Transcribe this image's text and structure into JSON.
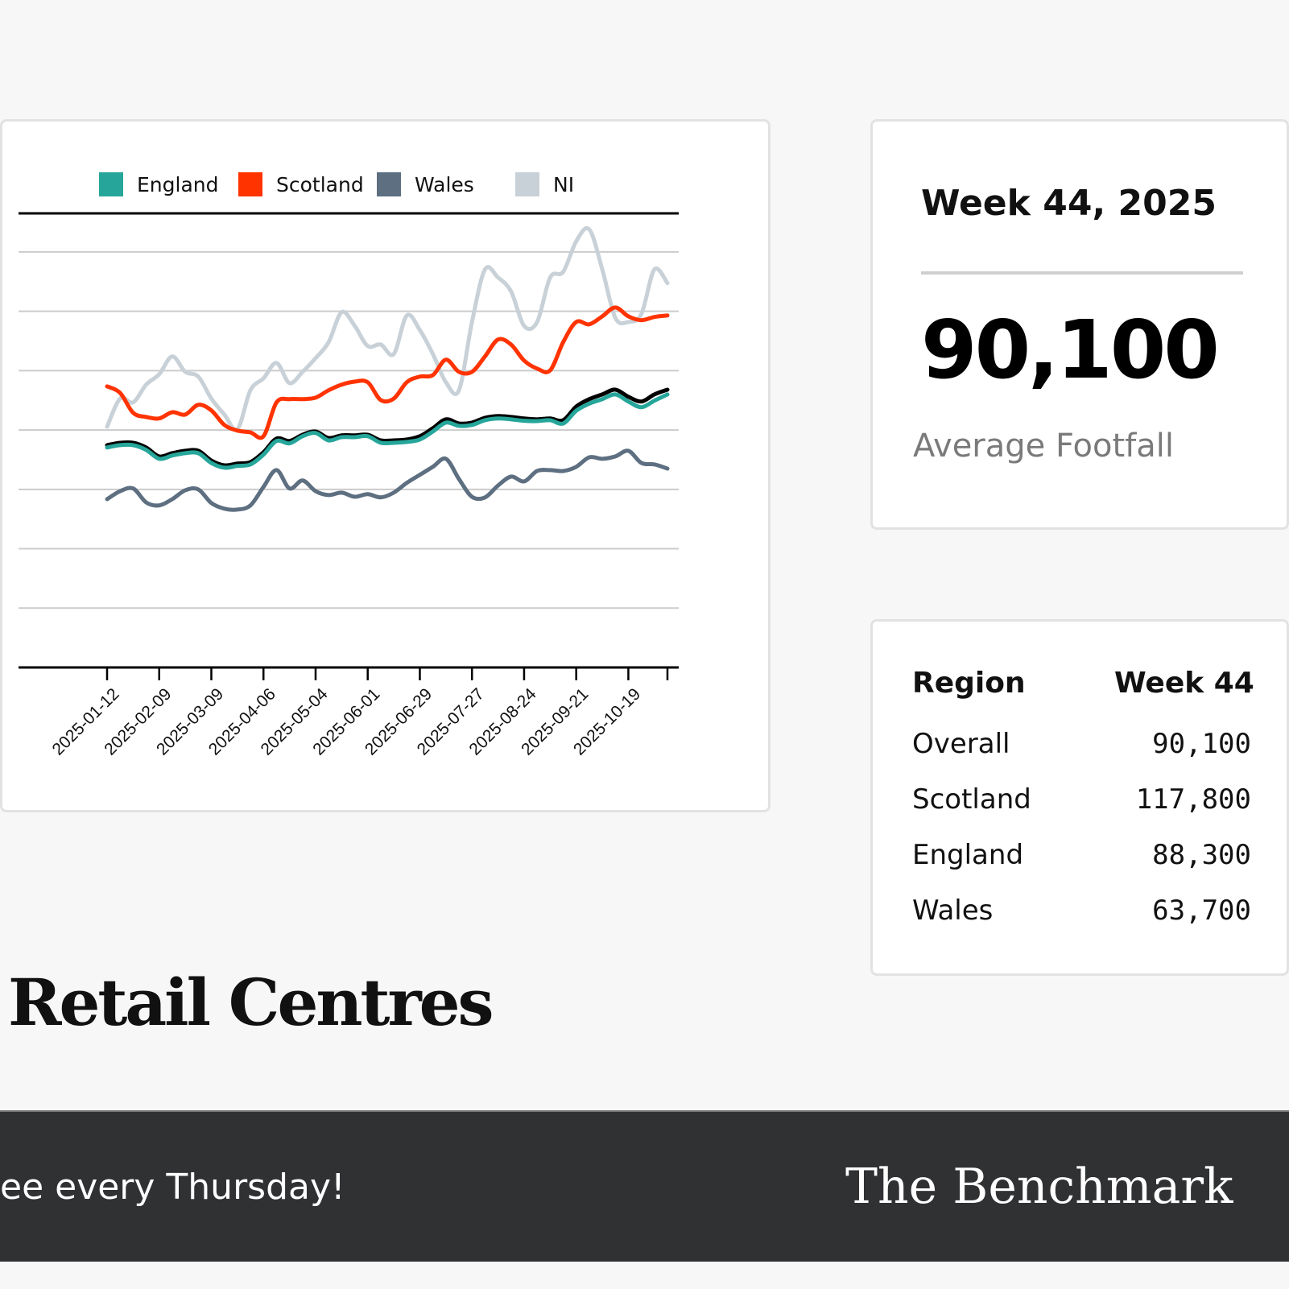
{
  "chart_data": {
    "type": "line",
    "x": [
      "2025-01-12",
      "2025-01-19",
      "2025-01-26",
      "2025-02-02",
      "2025-02-09",
      "2025-02-16",
      "2025-02-23",
      "2025-03-02",
      "2025-03-09",
      "2025-03-16",
      "2025-03-23",
      "2025-03-30",
      "2025-04-06",
      "2025-04-13",
      "2025-04-20",
      "2025-04-27",
      "2025-05-04",
      "2025-05-11",
      "2025-05-18",
      "2025-05-25",
      "2025-06-01",
      "2025-06-08",
      "2025-06-15",
      "2025-06-22",
      "2025-06-29",
      "2025-07-06",
      "2025-07-13",
      "2025-07-20",
      "2025-07-27",
      "2025-08-03",
      "2025-08-10",
      "2025-08-17",
      "2025-08-24",
      "2025-08-31",
      "2025-09-07",
      "2025-09-14",
      "2025-09-21",
      "2025-09-28",
      "2025-10-05",
      "2025-10-12",
      "2025-10-19",
      "2025-10-26",
      "2025-11-02",
      "2025-11-09"
    ],
    "tick_labels": [
      "2025-01-12",
      "2025-02-09",
      "2025-03-09",
      "2025-04-06",
      "2025-05-04",
      "2025-06-01",
      "2025-06-29",
      "2025-07-27",
      "2025-08-24",
      "2025-09-21",
      "2025-10-19"
    ],
    "ylim": [
      0,
      153000
    ],
    "grid": true,
    "legend_placement": "top",
    "series": [
      {
        "name": "NI",
        "color": "#c8d1d7",
        "values": [
          81100,
          90600,
          89300,
          95300,
          98800,
          104800,
          99600,
          98000,
          90600,
          85200,
          80300,
          93400,
          97400,
          102600,
          95800,
          99600,
          104200,
          109600,
          119700,
          115100,
          108300,
          108800,
          105600,
          118600,
          113700,
          105600,
          96100,
          93400,
          116400,
          134100,
          131400,
          126700,
          115100,
          116400,
          131400,
          133300,
          143600,
          147600,
          134100,
          117800,
          116400,
          119100,
          134100,
          129500
        ]
      },
      {
        "name": "Scotland",
        "color": "#ff3300",
        "values": [
          94700,
          92500,
          85800,
          84400,
          83900,
          86000,
          85200,
          88500,
          86600,
          81700,
          79800,
          79200,
          77900,
          89300,
          90400,
          90400,
          90900,
          93400,
          95300,
          96300,
          96100,
          90100,
          90600,
          96100,
          98000,
          98500,
          103700,
          99600,
          99600,
          104800,
          110500,
          108800,
          103400,
          100700,
          100100,
          109600,
          116400,
          115600,
          118300,
          121300,
          118300,
          117000,
          118100,
          118600
        ]
      },
      {
        "name": "Wales",
        "color": "#5d6f80",
        "values": [
          56700,
          59400,
          60300,
          55600,
          54600,
          56700,
          59700,
          60000,
          55400,
          53500,
          53200,
          54600,
          60800,
          66500,
          60300,
          63000,
          59400,
          58100,
          58900,
          57500,
          58400,
          57300,
          58900,
          62200,
          64900,
          67600,
          70300,
          63500,
          57500,
          57300,
          61300,
          64300,
          62700,
          66200,
          66500,
          66200,
          67600,
          70800,
          70300,
          71100,
          73000,
          68900,
          68400,
          67000
        ]
      },
      {
        "color": "#000000",
        "values": [
          74900,
          75700,
          75700,
          74100,
          71100,
          72200,
          73000,
          73000,
          69700,
          68100,
          68700,
          69200,
          72500,
          77100,
          76300,
          78400,
          79500,
          77300,
          78200,
          78200,
          78400,
          76500,
          76500,
          76800,
          77900,
          80600,
          83600,
          82200,
          82500,
          84100,
          84700,
          84400,
          83900,
          83600,
          83900,
          83300,
          87900,
          90400,
          92000,
          93600,
          91200,
          89600,
          92000,
          93600
        ]
      },
      {
        "name": "England",
        "color": "#26a69a",
        "values": [
          74100,
          74900,
          74900,
          73300,
          70300,
          71400,
          72200,
          72200,
          68900,
          67300,
          67900,
          68400,
          71700,
          76300,
          75500,
          77900,
          79000,
          76500,
          77600,
          77600,
          77900,
          75700,
          75700,
          76000,
          76800,
          79500,
          82500,
          81400,
          81700,
          83300,
          83900,
          83600,
          83100,
          83000,
          83300,
          82200,
          86500,
          88900,
          90400,
          92000,
          89600,
          87700,
          89900,
          92000
        ]
      }
    ],
    "legend": [
      {
        "label": "England",
        "color": "#26a69a"
      },
      {
        "label": "Scotland",
        "color": "#ff3300"
      },
      {
        "label": "Wales",
        "color": "#5d6f80"
      },
      {
        "label": "NI",
        "color": "#c8d1d7"
      }
    ]
  },
  "kpi": {
    "title": "Week 44, 2025",
    "value": "90,100",
    "label": "Average Footfall"
  },
  "table": {
    "headers": [
      "Region",
      "Week 44"
    ],
    "rows": [
      {
        "region": "Overall",
        "value": "90,100"
      },
      {
        "region": "Scotland",
        "value": "117,800"
      },
      {
        "region": "England",
        "value": "88,300"
      },
      {
        "region": "Wales",
        "value": "63,700"
      }
    ]
  },
  "page_title": "Retail Centres",
  "footer": {
    "left_text": "ee every Thursday!",
    "brand": "The Benchmark"
  }
}
